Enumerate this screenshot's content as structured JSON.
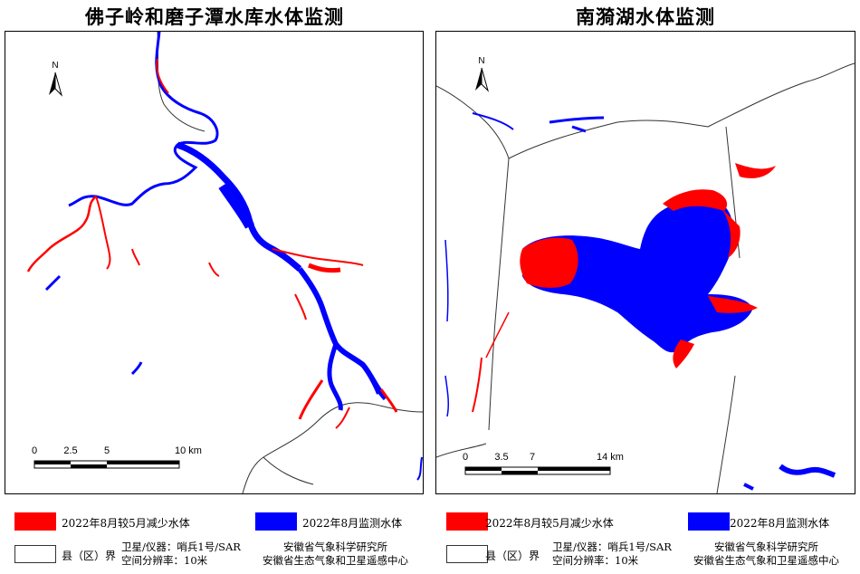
{
  "left_map": {
    "title": "佛子岭和磨子潭水库水体监测",
    "north_label": "N",
    "scale": {
      "ticks": [
        "0",
        "2.5",
        "5",
        "10 km"
      ]
    }
  },
  "right_map": {
    "title": "南漪湖水体监测",
    "north_label": "N",
    "scale": {
      "ticks": [
        "0",
        "3.5",
        "7",
        "14 km"
      ]
    }
  },
  "legend": {
    "decrease_label": "2022年8月较5月减少水体",
    "current_label": "2022年8月监测水体",
    "boundary_label": "县（区）界",
    "sensor_line1": "卫星/仪器：哨兵1号/SAR",
    "sensor_line2": "空间分辨率：10米",
    "org_line1": "安徽省气象科学研究所",
    "org_line2": "安徽省生态气象和卫星遥感中心",
    "colors": {
      "decrease": "#ff0000",
      "current": "#0000ff"
    }
  }
}
